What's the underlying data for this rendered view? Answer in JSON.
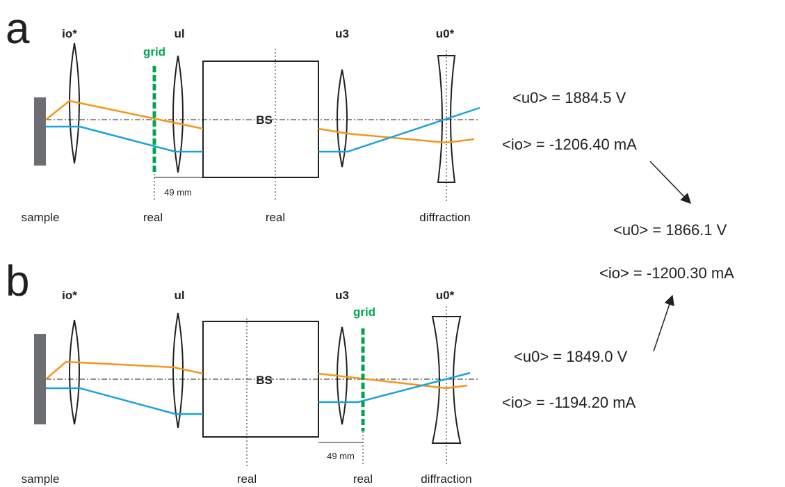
{
  "panels": [
    {
      "letter": "a",
      "lenses": [
        "io*",
        "ul",
        "u3",
        "u0*"
      ],
      "grid": "grid",
      "beam_splitter": "BS",
      "scale": "49 mm",
      "planes": [
        "sample",
        "real",
        "real",
        "diffraction"
      ]
    },
    {
      "letter": "b",
      "lenses": [
        "io*",
        "ul",
        "u3",
        "u0*"
      ],
      "grid": "grid",
      "beam_splitter": "BS",
      "scale": "49 mm",
      "planes": [
        "sample",
        "real",
        "real",
        "diffraction"
      ]
    }
  ],
  "settings": [
    {
      "u0": "<u0> = 1884.5 V",
      "io": "<io> = -1206.40 mA"
    },
    {
      "u0": "<u0> = 1866.1 V",
      "io": "<io> = -1200.30 mA"
    },
    {
      "u0": "<u0> = 1849.0 V",
      "io": "<io> = -1194.20 mA"
    }
  ]
}
